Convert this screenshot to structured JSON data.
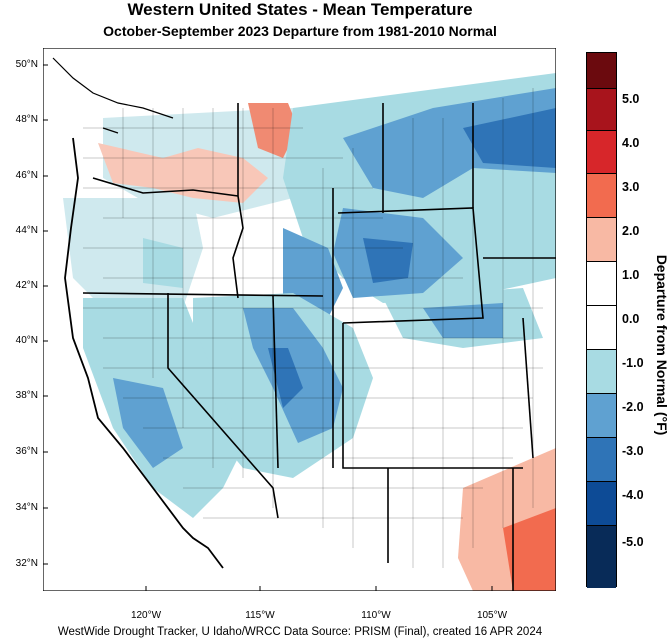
{
  "title": "Western United States - Mean Temperature",
  "subtitle": "October-September 2023  Departure from 1981-2010 Normal",
  "credit": "WestWide Drought Tracker, U Idaho/WRCC Data Source: PRISM (Final), created 16 APR 2024",
  "lat_labels": [
    "50°N",
    "48°N",
    "46°N",
    "44°N",
    "42°N",
    "40°N",
    "38°N",
    "36°N",
    "34°N",
    "32°N"
  ],
  "lon_labels": [
    "120°W",
    "115°W",
    "110°W",
    "105°W"
  ],
  "colorbar": {
    "title": "Departure from Normal (°F)",
    "labels": [
      "5.0",
      "4.0",
      "3.0",
      "2.0",
      "1.0",
      "0.0",
      "-1.0",
      "-2.0",
      "-3.0",
      "-4.0",
      "-5.0"
    ],
    "colors": [
      "#6b0a0e",
      "#a8141c",
      "#d7262a",
      "#f26b4f",
      "#f8b9a4",
      "#ffffff",
      "#ffffff",
      "#a8dbe3",
      "#5fa1d1",
      "#2f74b7",
      "#0d4b96",
      "#082b58"
    ]
  }
}
